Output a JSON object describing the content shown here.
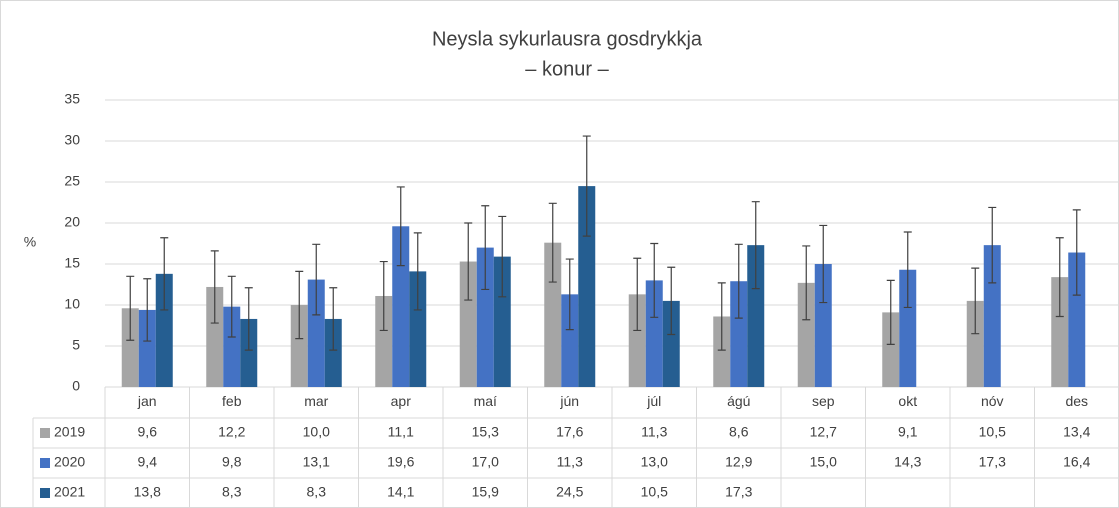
{
  "chart_data": {
    "type": "bar",
    "title": "Neysla sykurlausra gosdrykkja",
    "subtitle": "– konur –",
    "y_label": "%",
    "categories": [
      "jan",
      "feb",
      "mar",
      "apr",
      "maí",
      "jún",
      "júl",
      "ágú",
      "sep",
      "okt",
      "nóv",
      "des"
    ],
    "ylim": [
      0,
      35
    ],
    "yticks": [
      0,
      5,
      10,
      15,
      20,
      25,
      30,
      35
    ],
    "grid": true,
    "legend": "data-table",
    "series": [
      {
        "name": "2019",
        "color": "#a5a5a5",
        "values": [
          9.6,
          12.2,
          10.0,
          11.1,
          15.3,
          17.6,
          11.3,
          8.6,
          12.7,
          9.1,
          10.5,
          13.4
        ],
        "value_labels": [
          "9,6",
          "12,2",
          "10,0",
          "11,1",
          "15,3",
          "17,6",
          "11,3",
          "8,6",
          "12,7",
          "9,1",
          "10,5",
          "13,4"
        ],
        "errors": [
          3.9,
          4.4,
          4.1,
          4.2,
          4.7,
          4.8,
          4.4,
          4.1,
          4.5,
          3.9,
          4.0,
          4.8
        ]
      },
      {
        "name": "2020",
        "color": "#4472c4",
        "values": [
          9.4,
          9.8,
          13.1,
          19.6,
          17.0,
          11.3,
          13.0,
          12.9,
          15.0,
          14.3,
          17.3,
          16.4
        ],
        "value_labels": [
          "9,4",
          "9,8",
          "13,1",
          "19,6",
          "17,0",
          "11,3",
          "13,0",
          "12,9",
          "15,0",
          "14,3",
          "17,3",
          "16,4"
        ],
        "errors": [
          3.8,
          3.7,
          4.3,
          4.8,
          5.1,
          4.3,
          4.5,
          4.5,
          4.7,
          4.6,
          4.6,
          5.2
        ]
      },
      {
        "name": "2021",
        "color": "#255e91",
        "values": [
          13.8,
          8.3,
          8.3,
          14.1,
          15.9,
          24.5,
          10.5,
          17.3,
          null,
          null,
          null,
          null
        ],
        "value_labels": [
          "13,8",
          "8,3",
          "8,3",
          "14,1",
          "15,9",
          "24,5",
          "10,5",
          "17,3",
          null,
          null,
          null,
          null
        ],
        "errors": [
          4.4,
          3.8,
          3.8,
          4.7,
          4.9,
          6.1,
          4.1,
          5.3,
          null,
          null,
          null,
          null
        ]
      }
    ]
  }
}
